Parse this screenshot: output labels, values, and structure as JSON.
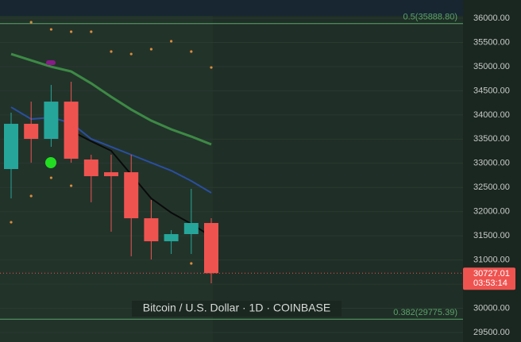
{
  "chart_data": {
    "type": "candlestick",
    "legend_text": "Bitcoin / U.S. Dollar · 1D · COINBASE",
    "ylim": [
      29303,
      36378
    ],
    "yticks": [
      {
        "value": 36000,
        "label": "36000.00"
      },
      {
        "value": 35500,
        "label": "35500.00"
      },
      {
        "value": 35000,
        "label": "35000.00"
      },
      {
        "value": 34500,
        "label": "34500.00"
      },
      {
        "value": 34000,
        "label": "34000.00"
      },
      {
        "value": 33500,
        "label": "33500.00"
      },
      {
        "value": 33000,
        "label": "33000.00"
      },
      {
        "value": 32500,
        "label": "32500.00"
      },
      {
        "value": 32000,
        "label": "32000.00"
      },
      {
        "value": 31500,
        "label": "31500.00"
      },
      {
        "value": 31000,
        "label": "31000.00"
      },
      {
        "value": 30500,
        "label": "30500.00"
      },
      {
        "value": 30000,
        "label": "30000.00"
      },
      {
        "value": 29500,
        "label": "29500.00"
      }
    ],
    "grid": true,
    "up_color": "#26a69a",
    "down_color": "#ef5350",
    "open": [
      32881,
      33817,
      33505,
      34276,
      33078,
      32815,
      32815,
      31863,
      31387,
      31535,
      31765
    ],
    "high": [
      34047,
      34276,
      34621,
      34687,
      33177,
      33177,
      33177,
      32241,
      31617,
      32471,
      31863
    ],
    "low": [
      32274,
      33012,
      33341,
      33012,
      32192,
      31584,
      31076,
      31010,
      31125,
      31125,
      30517
    ],
    "close": [
      33817,
      33505,
      34276,
      33094,
      32733,
      32733,
      31863,
      31387,
      31535,
      31765,
      30727.01
    ],
    "lines": [
      {
        "color": "#2a4fa0",
        "values": [
          34161,
          33915,
          33948,
          33833,
          33505,
          33341,
          33177,
          33012,
          32848,
          32635,
          32389
        ]
      },
      {
        "color": "#3d8a45",
        "values": [
          35261,
          35130,
          34998,
          34900,
          34654,
          34375,
          34112,
          33882,
          33702,
          33554,
          33390
        ]
      },
      {
        "color": "#0a0a0a",
        "values": [
          null,
          null,
          null,
          33669,
          33456,
          33259,
          32766,
          32274,
          31978,
          31748,
          31486
        ]
      }
    ],
    "dots": [
      {
        "color": "#d98c3a",
        "values": [
          null,
          35918,
          35770,
          35721,
          35721,
          35311,
          35261,
          35360,
          35524,
          35311,
          34982
        ]
      },
      {
        "color": "#d98c3a",
        "values": [
          31781,
          32323,
          32700,
          32536,
          null,
          null,
          null,
          null,
          null,
          30928,
          null
        ]
      }
    ],
    "levels": [
      {
        "value": 35888.8,
        "label": "0.5(35888.80)",
        "color": "#5aa36a"
      },
      {
        "value": 29775.39,
        "label": "0.382(29775.39)",
        "color": "#5aa36a"
      }
    ],
    "last_price": {
      "value": 30727.01,
      "label": "30727.01",
      "countdown": "03:53:14"
    }
  }
}
